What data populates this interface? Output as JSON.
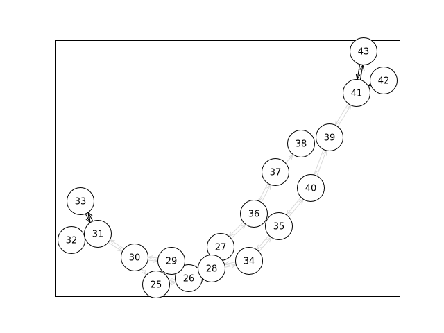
{
  "graph": {
    "nodes": [
      {
        "id": "25"
      },
      {
        "id": "26"
      },
      {
        "id": "27"
      },
      {
        "id": "28"
      },
      {
        "id": "29"
      },
      {
        "id": "30"
      },
      {
        "id": "31"
      },
      {
        "id": "32"
      },
      {
        "id": "33"
      },
      {
        "id": "34"
      },
      {
        "id": "35"
      },
      {
        "id": "36"
      },
      {
        "id": "37"
      },
      {
        "id": "38"
      },
      {
        "id": "39"
      },
      {
        "id": "40"
      },
      {
        "id": "41"
      },
      {
        "id": "42"
      },
      {
        "id": "43"
      }
    ],
    "edges": [
      {
        "from": "31",
        "to": "30",
        "style": "faint"
      },
      {
        "from": "30",
        "to": "31",
        "style": "faint"
      },
      {
        "from": "30",
        "to": "29",
        "style": "faint"
      },
      {
        "from": "29",
        "to": "30",
        "style": "faint"
      },
      {
        "from": "30",
        "to": "25",
        "style": "faint"
      },
      {
        "from": "25",
        "to": "26",
        "style": "faint"
      },
      {
        "from": "26",
        "to": "25",
        "style": "faint"
      },
      {
        "from": "29",
        "to": "26",
        "style": "faint"
      },
      {
        "from": "26",
        "to": "28",
        "style": "faint"
      },
      {
        "from": "28",
        "to": "26",
        "style": "faint"
      },
      {
        "from": "29",
        "to": "28",
        "style": "faint"
      },
      {
        "from": "28",
        "to": "27",
        "style": "faint"
      },
      {
        "from": "27",
        "to": "28",
        "style": "faint"
      },
      {
        "from": "28",
        "to": "34",
        "style": "faint"
      },
      {
        "from": "34",
        "to": "28",
        "style": "faint"
      },
      {
        "from": "27",
        "to": "36",
        "style": "faint"
      },
      {
        "from": "36",
        "to": "27",
        "style": "faint"
      },
      {
        "from": "34",
        "to": "35",
        "style": "faint"
      },
      {
        "from": "35",
        "to": "34",
        "style": "faint"
      },
      {
        "from": "36",
        "to": "37",
        "style": "faint"
      },
      {
        "from": "37",
        "to": "36",
        "style": "faint"
      },
      {
        "from": "37",
        "to": "38",
        "style": "faint"
      },
      {
        "from": "35",
        "to": "40",
        "style": "faint"
      },
      {
        "from": "40",
        "to": "35",
        "style": "faint"
      },
      {
        "from": "40",
        "to": "39",
        "style": "faint"
      },
      {
        "from": "39",
        "to": "40",
        "style": "faint"
      },
      {
        "from": "39",
        "to": "41",
        "style": "faint"
      },
      {
        "from": "41",
        "to": "39",
        "style": "faint"
      },
      {
        "from": "33",
        "to": "31",
        "style": "dark"
      },
      {
        "from": "31",
        "to": "33",
        "style": "dark"
      },
      {
        "from": "32",
        "to": "31",
        "style": "dark"
      },
      {
        "from": "43",
        "to": "41",
        "style": "dark"
      },
      {
        "from": "41",
        "to": "43",
        "style": "dark"
      },
      {
        "from": "42",
        "to": "41",
        "style": "dark"
      }
    ],
    "colors": {
      "node_fill": "#ffffff",
      "node_stroke": "#000000",
      "faint_edge": "#d9d9d9",
      "dark_edge": "#000000",
      "frame": "#000000"
    }
  }
}
